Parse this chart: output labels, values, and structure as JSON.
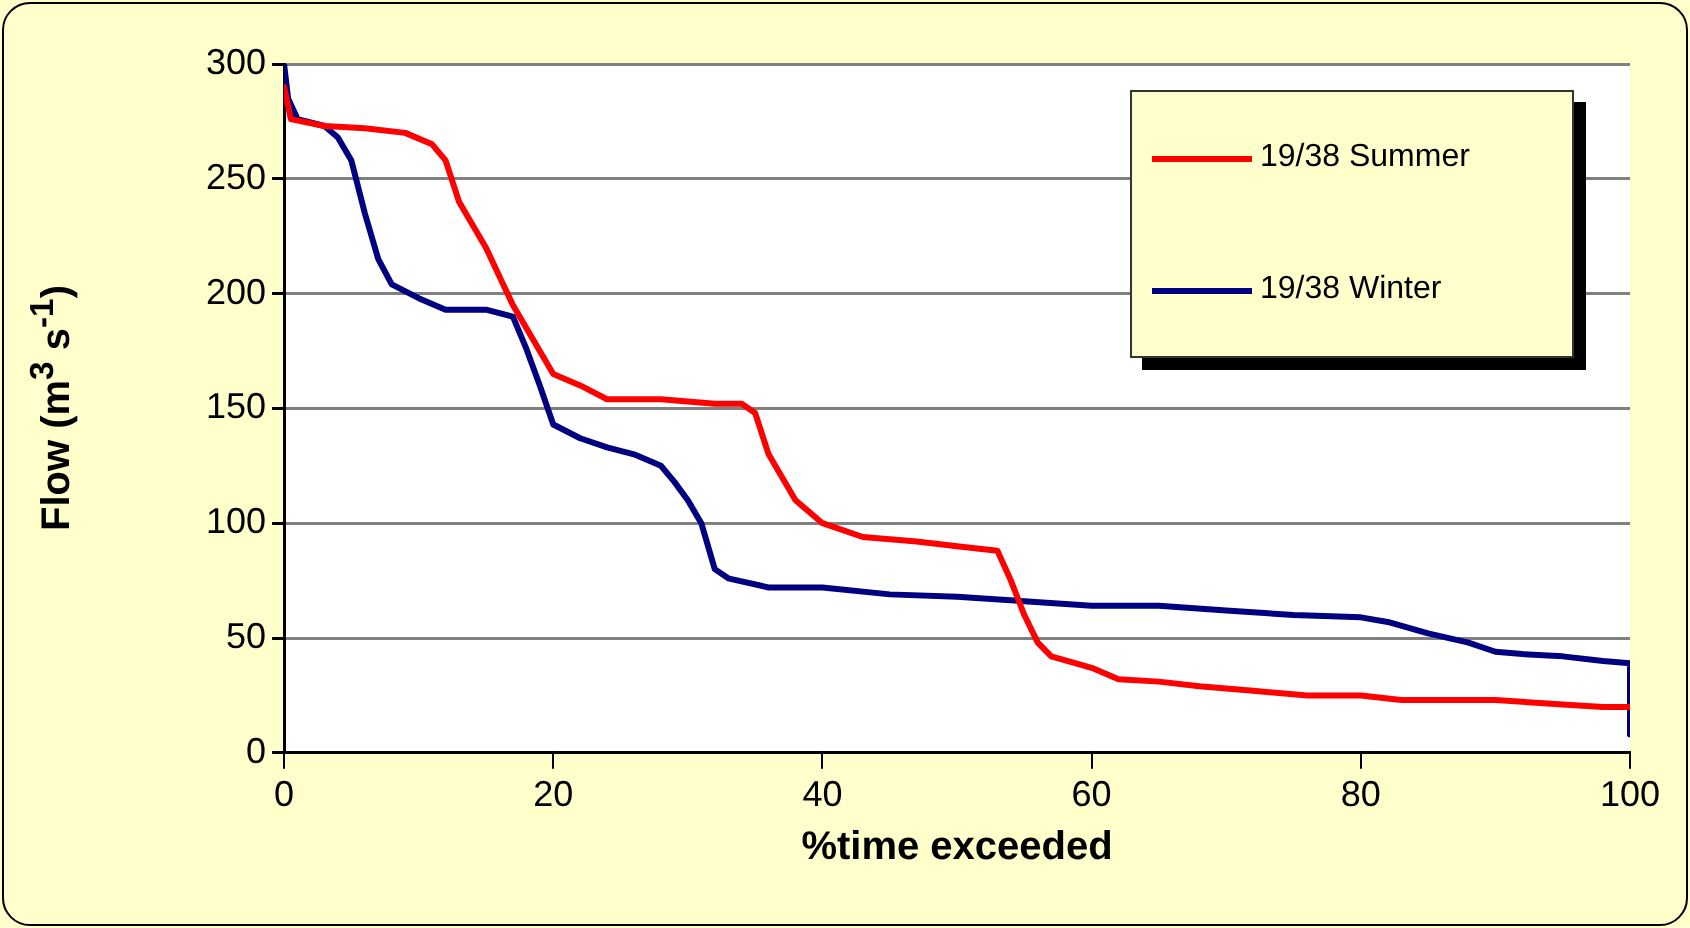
{
  "chart_data": {
    "type": "line",
    "xlabel": "%time exceeded",
    "ylabel": "Flow (m$^{3}$ s$^{-1}$)",
    "xlim": [
      0,
      100
    ],
    "xticks": [
      0,
      20,
      40,
      60,
      80,
      100
    ],
    "ylim": [
      0,
      300
    ],
    "yticks": [
      0,
      50,
      100,
      150,
      200,
      250,
      300
    ],
    "grid": "y",
    "legend": "top right",
    "marker": "none",
    "line_style": "solid",
    "series": [
      {
        "name": "19/38 Summer",
        "color": "#ff0000",
        "x": [
          0,
          0.5,
          3,
          6,
          9,
          11,
          12,
          13,
          15,
          17,
          19,
          20,
          22,
          24,
          28,
          32,
          34,
          35,
          36,
          38,
          40,
          43,
          47,
          50,
          53,
          54,
          55,
          56,
          57,
          60,
          62,
          65,
          68,
          72,
          76,
          80,
          83,
          90,
          95,
          98,
          100
        ],
        "values": [
          290,
          276,
          273,
          272,
          270,
          265,
          258,
          240,
          220,
          195,
          175,
          165,
          160,
          154,
          154,
          152,
          152,
          148,
          130,
          110,
          100,
          94,
          92,
          90,
          88,
          75,
          60,
          48,
          42,
          37,
          32,
          31,
          29,
          27,
          25,
          25,
          23,
          23,
          21,
          20,
          20
        ]
      },
      {
        "name": "19/38 Winter",
        "color": "#000080",
        "x": [
          0,
          0.3,
          1,
          3,
          4,
          5,
          6,
          7,
          8,
          10,
          12,
          15,
          17,
          18,
          19,
          20,
          22,
          24,
          26,
          28,
          29,
          30,
          31,
          32,
          33,
          36,
          40,
          45,
          50,
          55,
          60,
          65,
          70,
          75,
          80,
          82,
          85,
          88,
          90,
          92,
          95,
          98,
          100,
          100
        ],
        "values": [
          300,
          285,
          276,
          273,
          268,
          258,
          235,
          215,
          204,
          198,
          193,
          193,
          190,
          176,
          160,
          143,
          137,
          133,
          130,
          125,
          118,
          110,
          100,
          80,
          76,
          72,
          72,
          69,
          68,
          66,
          64,
          64,
          62,
          60,
          59,
          57,
          52,
          48,
          44,
          43,
          42,
          40,
          39,
          8
        ]
      }
    ]
  }
}
